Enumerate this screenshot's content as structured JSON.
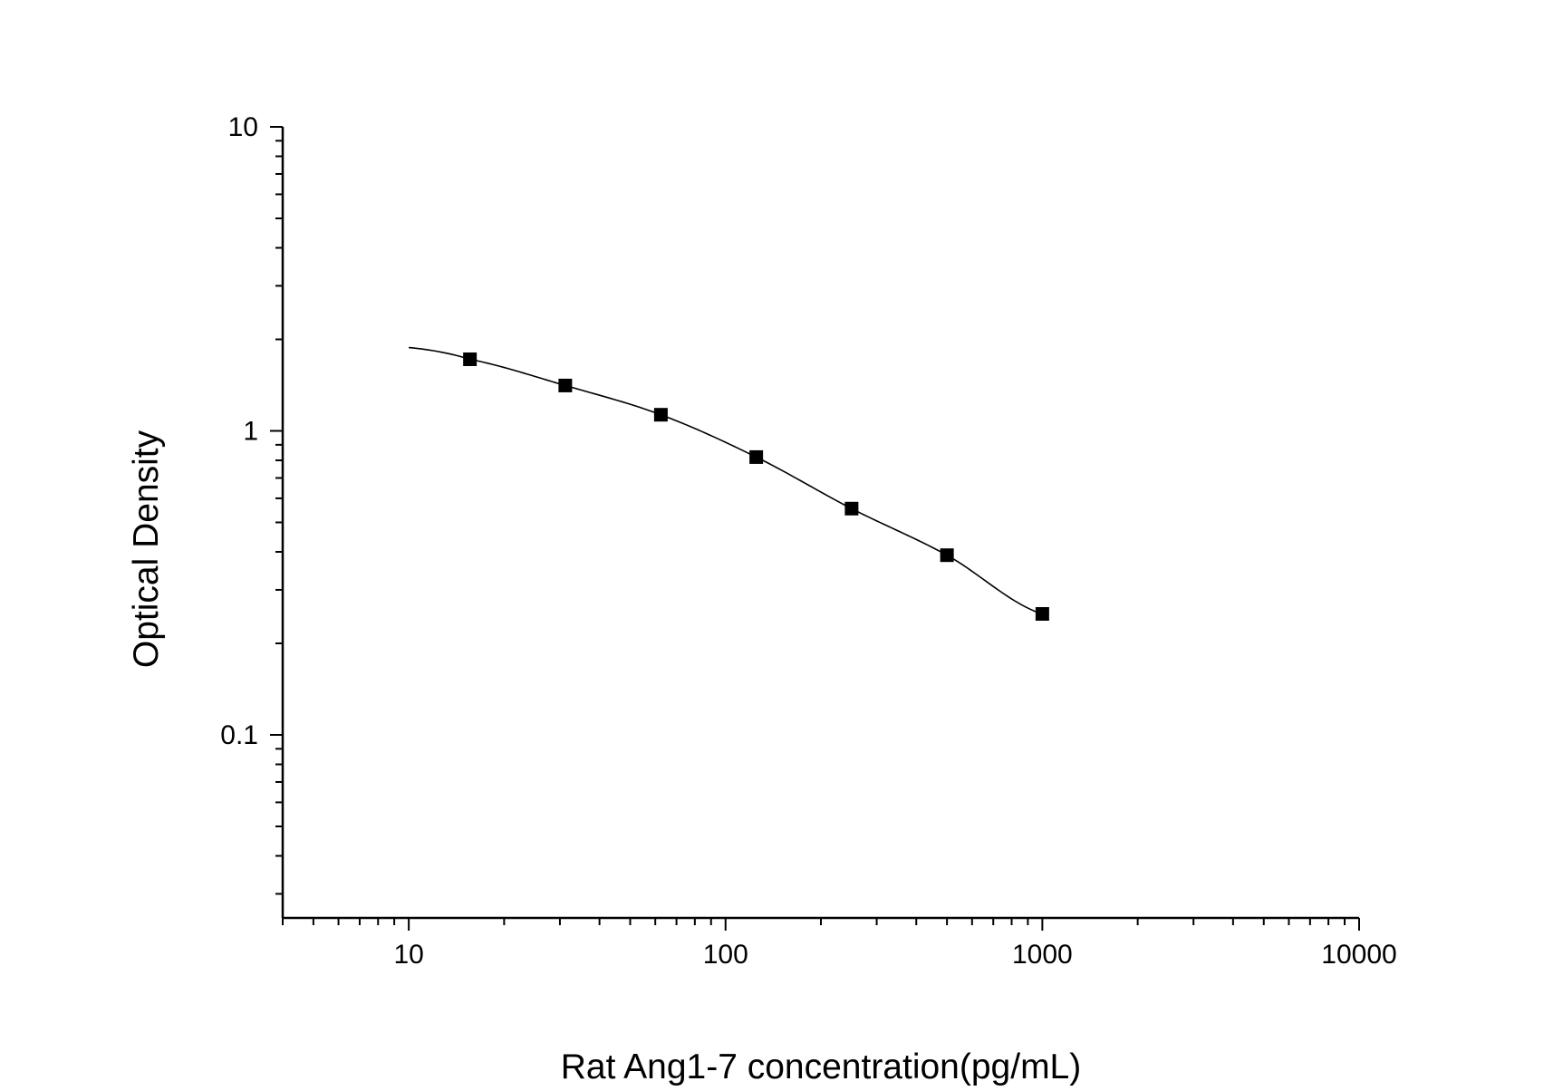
{
  "chart_data": {
    "type": "scatter",
    "title": "",
    "xlabel": "Rat Ang1-7 concentration(pg/mL)",
    "ylabel": "Optical Density",
    "x_scale": "log",
    "y_scale": "log",
    "xlim": [
      4,
      10000
    ],
    "ylim": [
      0.025,
      10
    ],
    "x_tick_labels": [
      "10",
      "100",
      "1000",
      "10000"
    ],
    "x_tick_values": [
      10,
      100,
      1000,
      10000
    ],
    "y_tick_labels": [
      "10",
      "1",
      "0.1"
    ],
    "y_tick_values": [
      10,
      1,
      0.1
    ],
    "grid": false,
    "legend": "none",
    "series": [
      {
        "marker": "square",
        "color": "#000000",
        "x": [
          15.6,
          31.2,
          62.5,
          125,
          250,
          500,
          1000
        ],
        "y": [
          1.72,
          1.41,
          1.13,
          0.82,
          0.555,
          0.39,
          0.25
        ]
      }
    ],
    "fit_curve": {
      "color": "#000000",
      "x": [
        10,
        15.6,
        31.2,
        62.5,
        125,
        250,
        500,
        1000
      ],
      "y": [
        1.88,
        1.72,
        1.41,
        1.13,
        0.82,
        0.555,
        0.39,
        0.25
      ]
    }
  }
}
